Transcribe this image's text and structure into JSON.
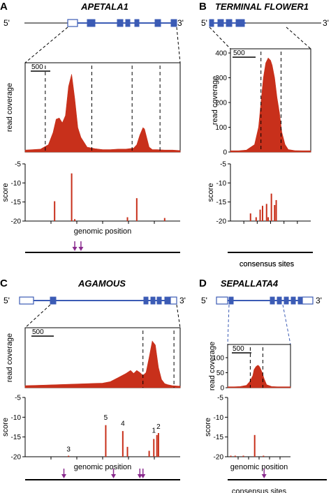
{
  "colors": {
    "coverage": "#c8301b",
    "score_bar": "#c8301b",
    "gene_model": "#3b5bb5",
    "site_arrow": "#8a2b8e",
    "dashed": "#000000",
    "zoom_dashed_c": "#000000",
    "zoom_dashed_d": "#3b5bb5"
  },
  "common": {
    "five_prime": "5'",
    "three_prime": "3'",
    "coverage_ylabel": "read coverage",
    "score_ylabel": "score",
    "genomic_position": "genomic position",
    "consensus_sites": "consensus sites",
    "scale_bar_label": "500"
  },
  "chart_data": [
    {
      "panel": "A",
      "gene": "APETALA1",
      "type": "area",
      "coverage": {
        "ylim": [
          0,
          350
        ],
        "yticks": [],
        "x": [
          0,
          0.05,
          0.1,
          0.15,
          0.18,
          0.2,
          0.22,
          0.24,
          0.26,
          0.28,
          0.3,
          0.32,
          0.34,
          0.36,
          0.38,
          0.4,
          0.45,
          0.5,
          0.55,
          0.6,
          0.65,
          0.7,
          0.72,
          0.74,
          0.76,
          0.77,
          0.78,
          0.8,
          0.82,
          0.85,
          0.9,
          0.95,
          1
        ],
        "y": [
          8,
          10,
          12,
          30,
          80,
          135,
          140,
          120,
          150,
          270,
          320,
          220,
          100,
          60,
          40,
          20,
          14,
          10,
          10,
          12,
          12,
          16,
          30,
          70,
          100,
          95,
          70,
          20,
          10,
          10,
          8,
          8,
          6
        ],
        "dashed_lines_x": [
          0.13,
          0.43,
          0.69,
          0.87
        ]
      },
      "score": {
        "ylim": [
          -20,
          -5
        ],
        "yticks": [
          "-5",
          "-10",
          "-15",
          "-20"
        ],
        "bars": [
          {
            "x": 0.19,
            "score": -14.8
          },
          {
            "x": 0.3,
            "score": -7.5
          },
          {
            "x": 0.32,
            "score": -19.5
          },
          {
            "x": 0.66,
            "score": -19
          },
          {
            "x": 0.72,
            "score": -14
          },
          {
            "x": 0.9,
            "score": -19.2
          }
        ],
        "numbers": []
      },
      "consensus_arrows_x": [
        0.32,
        0.36
      ]
    },
    {
      "panel": "B",
      "gene": "TERMINAL FLOWER1",
      "type": "area",
      "coverage": {
        "ylim": [
          0,
          400
        ],
        "yticks": [
          "0",
          "100",
          "200",
          "300",
          "400"
        ],
        "x": [
          0,
          0.1,
          0.2,
          0.3,
          0.35,
          0.38,
          0.41,
          0.44,
          0.47,
          0.5,
          0.52,
          0.55,
          0.58,
          0.61,
          0.64,
          0.68,
          0.72,
          0.8,
          0.9,
          1
        ],
        "y": [
          5,
          5,
          8,
          30,
          100,
          200,
          300,
          360,
          380,
          370,
          350,
          300,
          220,
          160,
          80,
          30,
          10,
          6,
          5,
          5
        ],
        "dashed_lines_x": [
          0.38,
          0.63
        ]
      },
      "score": {
        "ylim": [
          -20,
          -5
        ],
        "yticks": [
          "-5",
          "-10",
          "-15",
          "-20"
        ],
        "bars": [
          {
            "x": 0.25,
            "score": -18
          },
          {
            "x": 0.32,
            "score": -19
          },
          {
            "x": 0.37,
            "score": -17
          },
          {
            "x": 0.4,
            "score": -16
          },
          {
            "x": 0.45,
            "score": -15.5
          },
          {
            "x": 0.47,
            "score": -19
          },
          {
            "x": 0.51,
            "score": -12.8
          },
          {
            "x": 0.55,
            "score": -15.8
          },
          {
            "x": 0.57,
            "score": -14.5
          }
        ],
        "numbers": []
      },
      "consensus_arrows_x": []
    },
    {
      "panel": "C",
      "gene": "AGAMOUS",
      "type": "area",
      "coverage": {
        "ylim": [
          0,
          550
        ],
        "yticks": [],
        "x": [
          0,
          0.1,
          0.2,
          0.3,
          0.4,
          0.5,
          0.55,
          0.6,
          0.65,
          0.68,
          0.7,
          0.72,
          0.74,
          0.76,
          0.78,
          0.8,
          0.82,
          0.84,
          0.86,
          0.88,
          0.9,
          0.92,
          0.95,
          1
        ],
        "y": [
          20,
          25,
          30,
          35,
          40,
          45,
          60,
          100,
          140,
          170,
          140,
          170,
          150,
          120,
          150,
          300,
          460,
          420,
          200,
          80,
          40,
          30,
          20,
          15
        ],
        "dashed_lines_x": [
          0.76,
          0.96
        ]
      },
      "score": {
        "ylim": [
          -20,
          -5
        ],
        "yticks": [
          "-5",
          "-10",
          "-15",
          "-20"
        ],
        "bars": [
          {
            "x": 0.28,
            "score": -20
          },
          {
            "x": 0.52,
            "score": -12
          },
          {
            "x": 0.63,
            "score": -13.5
          },
          {
            "x": 0.66,
            "score": -17.5
          },
          {
            "x": 0.8,
            "score": -18.5
          },
          {
            "x": 0.83,
            "score": -15.5
          },
          {
            "x": 0.85,
            "score": -14.5
          },
          {
            "x": 0.86,
            "score": -14
          }
        ],
        "numbers": [
          {
            "label": "3",
            "x": 0.28,
            "score": -19
          },
          {
            "label": "5",
            "x": 0.52,
            "score": -11
          },
          {
            "label": "4",
            "x": 0.63,
            "score": -12.5
          },
          {
            "label": "1",
            "x": 0.83,
            "score": -14.3
          },
          {
            "label": "2",
            "x": 0.86,
            "score": -13.3
          }
        ]
      },
      "consensus_arrows_x": [
        0.25,
        0.57,
        0.74,
        0.76
      ]
    },
    {
      "panel": "D",
      "gene": "SEPALLATA4",
      "type": "area",
      "coverage": {
        "ylim": [
          0,
          130
        ],
        "yticks": [
          "0",
          "50",
          "100"
        ],
        "x": [
          0,
          0.1,
          0.2,
          0.3,
          0.35,
          0.4,
          0.42,
          0.45,
          0.48,
          0.5,
          0.52,
          0.55,
          0.58,
          0.62,
          0.7,
          0.8,
          0.9,
          1
        ],
        "y": [
          3,
          3,
          4,
          8,
          20,
          40,
          60,
          70,
          75,
          72,
          65,
          50,
          30,
          10,
          4,
          3,
          3,
          3
        ],
        "dashed_lines_x": [
          0.36,
          0.56
        ]
      },
      "score": {
        "ylim": [
          -20,
          -5
        ],
        "yticks": [
          "-5",
          "-10",
          "-15",
          "-20"
        ],
        "bars": [
          {
            "x": 0.05,
            "score": -20
          },
          {
            "x": 0.12,
            "score": -20
          },
          {
            "x": 0.25,
            "score": -20
          },
          {
            "x": 0.43,
            "score": -14.5
          },
          {
            "x": 0.57,
            "score": -20
          }
        ],
        "numbers": []
      },
      "consensus_arrows_x": [
        0.58
      ]
    }
  ]
}
